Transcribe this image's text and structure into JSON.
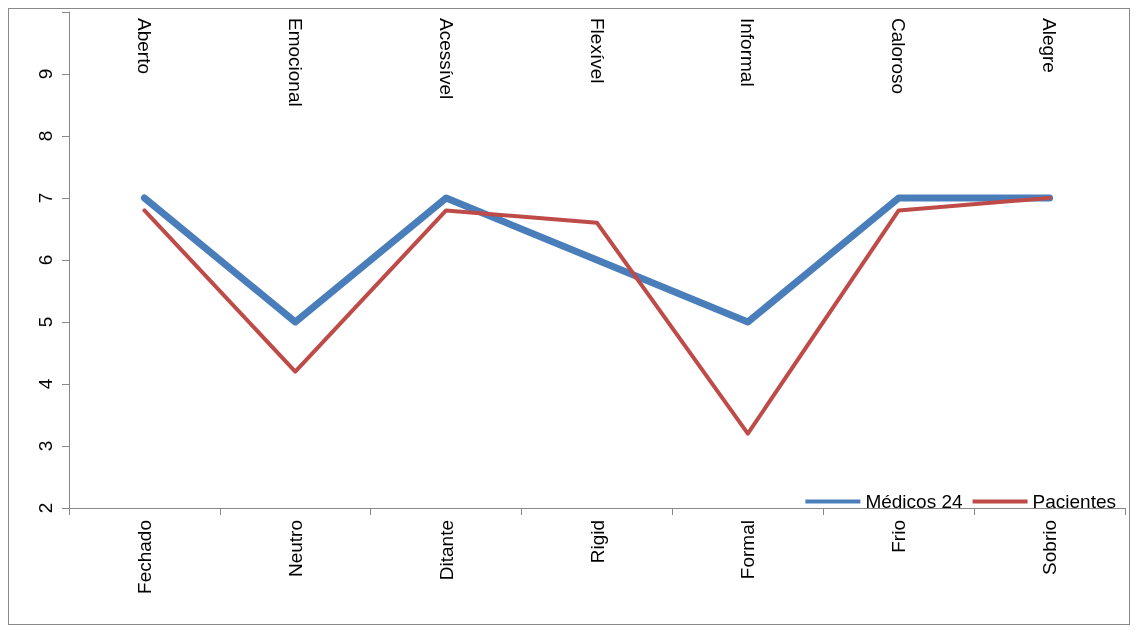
{
  "chart_data": {
    "type": "line",
    "categories": [
      "Fechado",
      "Neutro",
      "Ditante",
      "Rigid",
      "Formal",
      "Frio",
      "Sobrio"
    ],
    "annotations": [
      "Aberto",
      "Emocional",
      "Acessível",
      "Flexível",
      "Informal",
      "Caloroso",
      "Alegre"
    ],
    "series": [
      {
        "name": "Médicos 24",
        "color": "#4a7ebb",
        "values": [
          7,
          5,
          7,
          6,
          5,
          7,
          7
        ]
      },
      {
        "name": "Pacientes",
        "color": "#be4b48",
        "values": [
          6.8,
          4.2,
          6.8,
          6.6,
          3.2,
          6.8,
          7.0
        ]
      }
    ],
    "ylim": [
      2,
      10
    ],
    "yticks": [
      2,
      3,
      4,
      5,
      6,
      7,
      8,
      9,
      {
        "value": 10,
        "label": null
      }
    ],
    "grid": false,
    "legend": "bottom right",
    "marker": "none",
    "line_style": "solid"
  }
}
